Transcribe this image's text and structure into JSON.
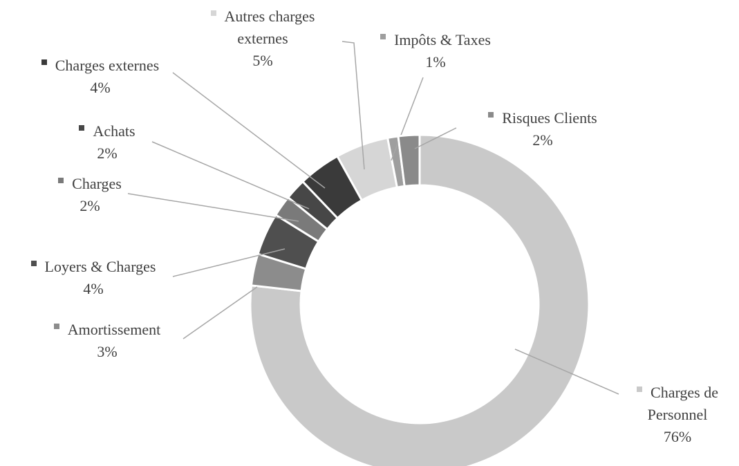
{
  "chart_data": {
    "type": "donut",
    "categories": [
      "Charges de Personnel",
      "Amortissement",
      "Loyers & Charges",
      "Charges",
      "Achats",
      "Charges externes",
      "Autres charges externes",
      "Impôts & Taxes",
      "Risques Clients"
    ],
    "values": [
      76,
      3,
      4,
      2,
      2,
      4,
      5,
      1,
      2
    ],
    "value_labels": [
      "76%",
      "3%",
      "4%",
      "2%",
      "2%",
      "4%",
      "5%",
      "1%",
      "2%"
    ],
    "colors": [
      "#c9c9c9",
      "#8c8c8c",
      "#4f4f4f",
      "#7a7a7a",
      "#474747",
      "#3a3a3a",
      "#d6d6d6",
      "#9e9e9e",
      "#8a8a8a"
    ]
  }
}
